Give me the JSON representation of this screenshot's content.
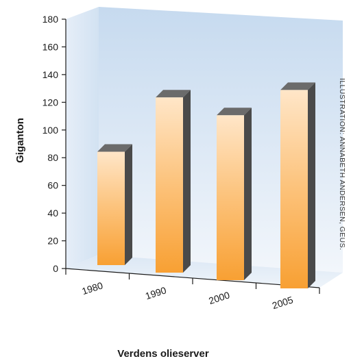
{
  "chart_data": {
    "type": "bar",
    "categories": [
      "1980",
      "1990",
      "2000",
      "2005"
    ],
    "values": [
      88,
      136,
      128,
      154
    ],
    "xlabel": "Verdens olieserver",
    "ylabel": "Giganton",
    "ylim": [
      0,
      180
    ],
    "yticks": [
      "0",
      "20",
      "40",
      "60",
      "80",
      "100",
      "120",
      "140",
      "160",
      "180"
    ],
    "grid": false,
    "credit": "ILLUSTRATION: ANNABETH ANDERSEN, GEUS.",
    "colors": {
      "bar_top": "#ffe4c4",
      "bar_bottom": "#f9a33a",
      "bar_side": "#4a4a4a",
      "bar_cap": "#6b6b6b",
      "wall_top": "#c4d9ef",
      "wall_bottom": "#f3f7fc"
    }
  }
}
